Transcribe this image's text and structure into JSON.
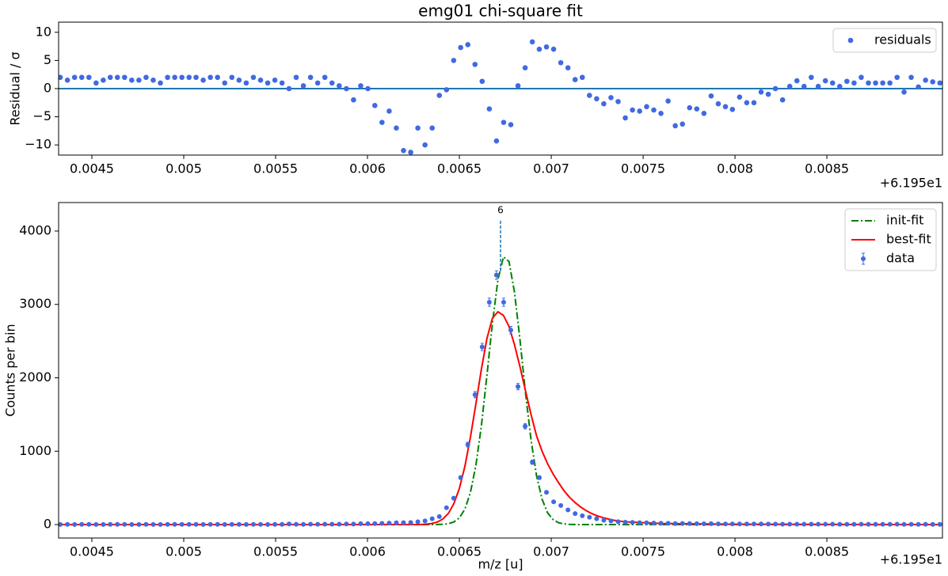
{
  "chart_data": [
    {
      "type": "scatter",
      "title": "emg01 chi-square fit",
      "ylabel": "Residual / σ",
      "x_offset_label": "+6.195e1",
      "x": [
        0.004328,
        0.004367,
        0.004406,
        0.004445,
        0.004484,
        0.004523,
        0.004562,
        0.0046,
        0.004639,
        0.004678,
        0.004717,
        0.004756,
        0.004795,
        0.004834,
        0.004873,
        0.004912,
        0.004951,
        0.00499,
        0.005029,
        0.005067,
        0.005106,
        0.005145,
        0.005184,
        0.005223,
        0.005262,
        0.005301,
        0.00534,
        0.005379,
        0.005418,
        0.005457,
        0.005496,
        0.005535,
        0.005573,
        0.005612,
        0.005651,
        0.00569,
        0.005729,
        0.005768,
        0.005807,
        0.005846,
        0.005885,
        0.005924,
        0.005963,
        0.006002,
        0.00604,
        0.006079,
        0.006118,
        0.006157,
        0.006196,
        0.006235,
        0.006274,
        0.006313,
        0.006352,
        0.006391,
        0.00643,
        0.006469,
        0.006507,
        0.006546,
        0.006585,
        0.006624,
        0.006663,
        0.006702,
        0.006741,
        0.00678,
        0.006819,
        0.006858,
        0.006897,
        0.006935,
        0.006974,
        0.007013,
        0.007052,
        0.007091,
        0.00713,
        0.007169,
        0.007208,
        0.007247,
        0.007286,
        0.007325,
        0.007364,
        0.007403,
        0.007442,
        0.007481,
        0.007519,
        0.007558,
        0.007597,
        0.007636,
        0.007675,
        0.007714,
        0.007753,
        0.007792,
        0.007831,
        0.00787,
        0.007909,
        0.007948,
        0.007986,
        0.008025,
        0.008064,
        0.008103,
        0.008142,
        0.008181,
        0.00822,
        0.008259,
        0.008298,
        0.008337,
        0.008376,
        0.008415,
        0.008453,
        0.008492,
        0.008531,
        0.00857,
        0.008609,
        0.008648,
        0.008687,
        0.008726,
        0.008765,
        0.008804,
        0.008843,
        0.008882,
        0.00892,
        0.008959,
        0.008998,
        0.009037,
        0.009076,
        0.009115
      ],
      "series": [
        {
          "name": "residuals",
          "color": "#4169e1",
          "values": [
            2,
            1.5,
            2,
            2,
            2,
            1,
            1.5,
            2,
            2,
            2,
            1.5,
            1.5,
            2,
            1.5,
            1,
            2,
            2,
            2,
            2,
            2,
            1.5,
            2,
            2,
            1,
            2,
            1.5,
            1,
            2,
            1.5,
            1,
            1.5,
            1,
            0,
            2,
            0.5,
            2,
            1,
            2,
            1,
            0.5,
            0,
            -2,
            0.5,
            0,
            -3,
            -6,
            -4,
            -7,
            -11,
            -11.3,
            -7,
            -10,
            -7,
            -1.2,
            -0.2,
            5,
            7.3,
            7.8,
            4.3,
            1.3,
            -3.6,
            -9.3,
            -6,
            -6.4,
            0.5,
            3.7,
            8.3,
            7,
            7.4,
            7,
            4.6,
            3.7,
            1.6,
            2,
            -1.2,
            -1.8,
            -2.7,
            -1.6,
            -2.3,
            -5.2,
            -3.8,
            -4,
            -3.2,
            -3.8,
            -4.4,
            -2.2,
            -6.6,
            -6.3,
            -3.4,
            -3.6,
            -4.4,
            -1.3,
            -2.7,
            -3.2,
            -3.7,
            -1.5,
            -2.5,
            -2.5,
            -0.6,
            -1,
            0,
            -2,
            0.4,
            1.4,
            0.4,
            2,
            0.4,
            1.4,
            1,
            0.4,
            1.3,
            1,
            2,
            1,
            1,
            1,
            1,
            2,
            -0.6,
            2,
            0.3,
            1.5,
            1.2,
            1
          ]
        }
      ],
      "hline": {
        "y": 0,
        "color": "#1f77b4"
      },
      "xlim": [
        0.004319,
        0.009129
      ],
      "ylim": [
        -11.8,
        11.8
      ],
      "xticks": [
        0.0045,
        0.005,
        0.0055,
        0.006,
        0.0065,
        0.007,
        0.0075,
        0.008,
        0.0085
      ],
      "yticks": [
        {
          "value": -10,
          "label": "−10"
        },
        {
          "value": -5,
          "label": "−5"
        },
        0,
        5,
        10
      ],
      "legend": "upper right"
    },
    {
      "type": "errorbar",
      "xlabel": "m/z [u]",
      "ylabel": "Counts per bin",
      "x_offset_label": "+6.195e1",
      "x": [
        0.004328,
        0.004367,
        0.004406,
        0.004445,
        0.004484,
        0.004523,
        0.004562,
        0.0046,
        0.004639,
        0.004678,
        0.004717,
        0.004756,
        0.004795,
        0.004834,
        0.004873,
        0.004912,
        0.004951,
        0.00499,
        0.005029,
        0.005067,
        0.005106,
        0.005145,
        0.005184,
        0.005223,
        0.005262,
        0.005301,
        0.00534,
        0.005379,
        0.005418,
        0.005457,
        0.005496,
        0.005535,
        0.005573,
        0.005612,
        0.005651,
        0.00569,
        0.005729,
        0.005768,
        0.005807,
        0.005846,
        0.005885,
        0.005924,
        0.005963,
        0.006002,
        0.00604,
        0.006079,
        0.006118,
        0.006157,
        0.006196,
        0.006235,
        0.006274,
        0.006313,
        0.006352,
        0.006391,
        0.00643,
        0.006469,
        0.006507,
        0.006546,
        0.006585,
        0.006624,
        0.006663,
        0.006702,
        0.006741,
        0.00678,
        0.006819,
        0.006858,
        0.006897,
        0.006935,
        0.006974,
        0.007013,
        0.007052,
        0.007091,
        0.00713,
        0.007169,
        0.007208,
        0.007247,
        0.007286,
        0.007325,
        0.007364,
        0.007403,
        0.007442,
        0.007481,
        0.007519,
        0.007558,
        0.007597,
        0.007636,
        0.007675,
        0.007714,
        0.007753,
        0.007792,
        0.007831,
        0.00787,
        0.007909,
        0.007948,
        0.007986,
        0.008025,
        0.008064,
        0.008103,
        0.008142,
        0.008181,
        0.00822,
        0.008259,
        0.008298,
        0.008337,
        0.008376,
        0.008415,
        0.008453,
        0.008492,
        0.008531,
        0.00857,
        0.008609,
        0.008648,
        0.008687,
        0.008726,
        0.008765,
        0.008804,
        0.008843,
        0.008882,
        0.00892,
        0.008959,
        0.008998,
        0.009037,
        0.009076,
        0.009115
      ],
      "series": [
        {
          "name": "data",
          "color": "#4169e1",
          "values": [
            2,
            3,
            2,
            3,
            3,
            2,
            2,
            3,
            3,
            3,
            2,
            2,
            3,
            2,
            2,
            3,
            3,
            3,
            3,
            3,
            2,
            3,
            3,
            2,
            3,
            3,
            2,
            3,
            3,
            2,
            3,
            3,
            8,
            4,
            3,
            5,
            4,
            6,
            6,
            6,
            8,
            7,
            12,
            12,
            14,
            17,
            20,
            25,
            26,
            28,
            38,
            50,
            80,
            110,
            230,
            360,
            640,
            1090,
            1770,
            2420,
            3030,
            3400,
            3030,
            2650,
            1880,
            1340,
            850,
            640,
            440,
            310,
            260,
            200,
            150,
            120,
            100,
            80,
            60,
            50,
            40,
            32,
            30,
            26,
            24,
            20,
            18,
            18,
            14,
            15,
            14,
            12,
            11,
            12,
            10,
            9,
            9,
            9,
            8,
            8,
            8,
            7,
            7,
            6,
            6,
            6,
            5,
            6,
            5,
            5,
            5,
            4,
            4,
            4,
            5,
            4,
            4,
            4,
            4,
            5,
            3,
            4,
            3,
            4,
            3,
            3
          ],
          "errors": [
            1.4,
            1.7,
            1.4,
            1.7,
            1.7,
            1.4,
            1.4,
            1.7,
            1.7,
            1.7,
            1.4,
            1.4,
            1.7,
            1.4,
            1.4,
            1.7,
            1.7,
            1.7,
            1.7,
            1.7,
            1.4,
            1.7,
            1.7,
            1.4,
            1.7,
            1.7,
            1.4,
            1.7,
            1.7,
            1.4,
            1.7,
            1.7,
            2.8,
            2,
            1.7,
            2.2,
            2,
            2.4,
            2.4,
            2.4,
            2.8,
            2.6,
            3.5,
            3.5,
            3.7,
            4.1,
            4.5,
            5,
            5.1,
            5.3,
            6.2,
            7.1,
            8.9,
            10.5,
            15.2,
            19,
            25.3,
            33,
            42.1,
            49.2,
            55,
            58.3,
            55,
            51.5,
            43.4,
            36.6,
            29.2,
            25.3,
            21,
            17.6,
            16.1,
            14.1,
            12.2,
            11,
            10,
            8.9,
            7.7,
            7.1,
            6.3,
            5.7,
            5.5,
            5.1,
            4.9,
            4.5,
            4.2,
            4.2,
            3.7,
            3.9,
            3.7,
            3.5,
            3.3,
            3.5,
            3.2,
            3,
            3,
            3,
            2.8,
            2.8,
            2.8,
            2.6,
            2.6,
            2.4,
            2.4,
            2.4,
            2.2,
            2.4,
            2.2,
            2.2,
            2.2,
            2,
            2,
            2,
            2.2,
            2,
            2,
            2,
            2,
            2.2,
            1.7,
            2,
            1.7,
            2,
            1.7,
            1.7
          ]
        }
      ],
      "fits": {
        "x": [
          0.00432,
          0.0062,
          0.00623,
          0.00626,
          0.00629,
          0.00632,
          0.00635,
          0.00638,
          0.00641,
          0.00644,
          0.00647,
          0.0065,
          0.00653,
          0.00656,
          0.00659,
          0.00662,
          0.00665,
          0.00668,
          0.00671,
          0.00674,
          0.00677,
          0.0068,
          0.00683,
          0.00686,
          0.00689,
          0.00692,
          0.00695,
          0.00698,
          0.00701,
          0.00704,
          0.00707,
          0.0071,
          0.00713,
          0.00716,
          0.00719,
          0.00722,
          0.00725,
          0.00728,
          0.00731,
          0.00734,
          0.00737,
          0.0074,
          0.0076,
          0.008,
          0.00913
        ],
        "series": [
          {
            "name": "init-fit",
            "color": "#008000",
            "style": "dashdot",
            "values": [
              0,
              0,
              0,
              0,
              0,
              0,
              0.3,
              1,
              4,
              12,
              36,
              92,
              210,
              436,
              809,
              1350,
              2034,
              2746,
              3340,
              3648,
              3584,
              3166,
              2515,
              1795,
              1153,
              666,
              346,
              161,
              68,
              25,
              9,
              3,
              1,
              0,
              0,
              0,
              0,
              0,
              0,
              0,
              0,
              0,
              0,
              0,
              0
            ]
          },
          {
            "name": "best-fit",
            "color": "#ff0000",
            "style": "solid",
            "values": [
              0,
              0,
              0.2,
              0.7,
              2,
              6,
              15,
              35,
              76,
              152,
              285,
              493,
              794,
              1190,
              1646,
              2120,
              2536,
              2814,
              2900,
              2850,
              2700,
              2450,
              2150,
              1820,
              1500,
              1210,
              1000,
              830,
              690,
              570,
              460,
              370,
              300,
              240,
              190,
              150,
              120,
              95,
              76,
              60,
              48,
              38,
              15,
              4,
              0
            ]
          }
        ]
      },
      "annotations": [
        {
          "text": "6",
          "x": 0.006724,
          "y_span": [
            3450,
            4150
          ],
          "color": "#1f77b4"
        }
      ],
      "xlim": [
        0.004319,
        0.009129
      ],
      "ylim": [
        -183,
        4388
      ],
      "xticks": [
        0.0045,
        0.005,
        0.0055,
        0.006,
        0.0065,
        0.007,
        0.0075,
        0.008,
        0.0085
      ],
      "yticks": [
        0,
        1000,
        2000,
        3000,
        4000
      ],
      "legend": "upper right"
    }
  ]
}
